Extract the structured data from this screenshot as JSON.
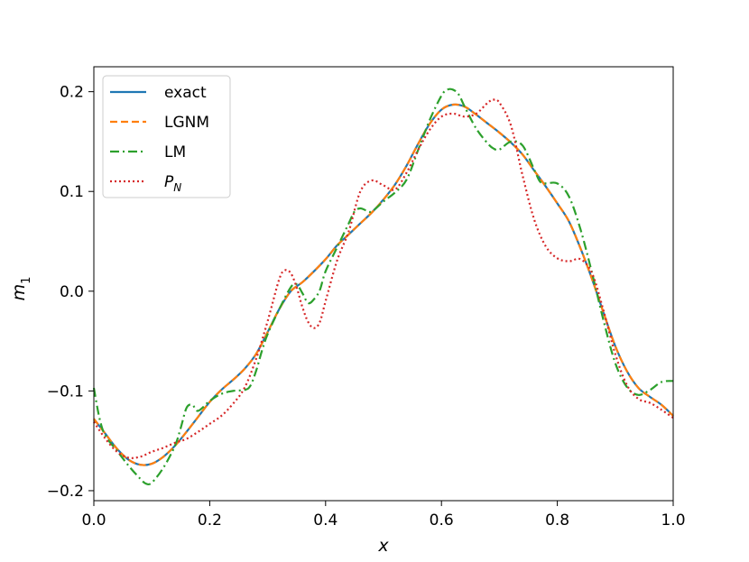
{
  "chart_data": {
    "type": "line",
    "xlabel": "x",
    "ylabel": "m",
    "ylabel_sub": "1",
    "xlim": [
      0.0,
      1.0
    ],
    "ylim": [
      -0.21,
      0.225
    ],
    "xticks": [
      0.0,
      0.2,
      0.4,
      0.6,
      0.8,
      1.0
    ],
    "xtick_labels": [
      "0.0",
      "0.2",
      "0.4",
      "0.6",
      "0.8",
      "1.0"
    ],
    "yticks": [
      -0.2,
      -0.1,
      0.0,
      0.1,
      0.2
    ],
    "ytick_labels": [
      "−0.2",
      "−0.1",
      "0.0",
      "0.1",
      "0.2"
    ],
    "grid": false,
    "legend_position": "upper-left",
    "series": [
      {
        "name": "exact",
        "legend_label": "exact",
        "color": "#1f77b4",
        "dash": "solid",
        "points": [
          [
            0.0,
            -0.128
          ],
          [
            0.02,
            -0.143
          ],
          [
            0.04,
            -0.158
          ],
          [
            0.06,
            -0.169
          ],
          [
            0.08,
            -0.174
          ],
          [
            0.1,
            -0.173
          ],
          [
            0.12,
            -0.166
          ],
          [
            0.14,
            -0.155
          ],
          [
            0.16,
            -0.141
          ],
          [
            0.18,
            -0.126
          ],
          [
            0.2,
            -0.111
          ],
          [
            0.22,
            -0.099
          ],
          [
            0.24,
            -0.089
          ],
          [
            0.26,
            -0.078
          ],
          [
            0.28,
            -0.063
          ],
          [
            0.3,
            -0.041
          ],
          [
            0.32,
            -0.018
          ],
          [
            0.34,
            0.0
          ],
          [
            0.36,
            0.009
          ],
          [
            0.38,
            0.02
          ],
          [
            0.4,
            0.032
          ],
          [
            0.42,
            0.046
          ],
          [
            0.44,
            0.057
          ],
          [
            0.46,
            0.068
          ],
          [
            0.48,
            0.079
          ],
          [
            0.5,
            0.092
          ],
          [
            0.52,
            0.107
          ],
          [
            0.54,
            0.126
          ],
          [
            0.56,
            0.148
          ],
          [
            0.58,
            0.168
          ],
          [
            0.6,
            0.182
          ],
          [
            0.62,
            0.187
          ],
          [
            0.64,
            0.185
          ],
          [
            0.66,
            0.177
          ],
          [
            0.68,
            0.168
          ],
          [
            0.7,
            0.159
          ],
          [
            0.72,
            0.149
          ],
          [
            0.74,
            0.137
          ],
          [
            0.76,
            0.121
          ],
          [
            0.78,
            0.105
          ],
          [
            0.8,
            0.088
          ],
          [
            0.82,
            0.07
          ],
          [
            0.84,
            0.043
          ],
          [
            0.86,
            0.012
          ],
          [
            0.88,
            -0.022
          ],
          [
            0.9,
            -0.055
          ],
          [
            0.92,
            -0.08
          ],
          [
            0.94,
            -0.097
          ],
          [
            0.96,
            -0.106
          ],
          [
            0.98,
            -0.114
          ],
          [
            1.0,
            -0.125
          ]
        ]
      },
      {
        "name": "LGNM",
        "legend_label": "LGNM",
        "color": "#ff7f0e",
        "dash": "dashed",
        "points": [
          [
            0.0,
            -0.128
          ],
          [
            0.02,
            -0.143
          ],
          [
            0.04,
            -0.158
          ],
          [
            0.06,
            -0.169
          ],
          [
            0.08,
            -0.174
          ],
          [
            0.1,
            -0.173
          ],
          [
            0.12,
            -0.166
          ],
          [
            0.14,
            -0.155
          ],
          [
            0.16,
            -0.141
          ],
          [
            0.18,
            -0.126
          ],
          [
            0.2,
            -0.111
          ],
          [
            0.22,
            -0.099
          ],
          [
            0.24,
            -0.089
          ],
          [
            0.26,
            -0.078
          ],
          [
            0.28,
            -0.063
          ],
          [
            0.3,
            -0.041
          ],
          [
            0.32,
            -0.018
          ],
          [
            0.34,
            0.0
          ],
          [
            0.36,
            0.009
          ],
          [
            0.38,
            0.02
          ],
          [
            0.4,
            0.032
          ],
          [
            0.42,
            0.046
          ],
          [
            0.44,
            0.057
          ],
          [
            0.46,
            0.068
          ],
          [
            0.48,
            0.079
          ],
          [
            0.5,
            0.092
          ],
          [
            0.52,
            0.107
          ],
          [
            0.54,
            0.126
          ],
          [
            0.56,
            0.148
          ],
          [
            0.58,
            0.168
          ],
          [
            0.6,
            0.182
          ],
          [
            0.62,
            0.187
          ],
          [
            0.64,
            0.185
          ],
          [
            0.66,
            0.177
          ],
          [
            0.68,
            0.168
          ],
          [
            0.7,
            0.159
          ],
          [
            0.72,
            0.149
          ],
          [
            0.74,
            0.137
          ],
          [
            0.76,
            0.121
          ],
          [
            0.78,
            0.105
          ],
          [
            0.8,
            0.088
          ],
          [
            0.82,
            0.07
          ],
          [
            0.84,
            0.043
          ],
          [
            0.86,
            0.012
          ],
          [
            0.88,
            -0.022
          ],
          [
            0.9,
            -0.055
          ],
          [
            0.92,
            -0.08
          ],
          [
            0.94,
            -0.097
          ],
          [
            0.96,
            -0.106
          ],
          [
            0.98,
            -0.114
          ],
          [
            1.0,
            -0.125
          ]
        ]
      },
      {
        "name": "LM",
        "legend_label": "LM",
        "color": "#2ca02c",
        "dash": "dashdot",
        "points": [
          [
            0.0,
            -0.097
          ],
          [
            0.01,
            -0.128
          ],
          [
            0.02,
            -0.145
          ],
          [
            0.04,
            -0.16
          ],
          [
            0.06,
            -0.175
          ],
          [
            0.08,
            -0.188
          ],
          [
            0.09,
            -0.193
          ],
          [
            0.1,
            -0.192
          ],
          [
            0.12,
            -0.177
          ],
          [
            0.14,
            -0.155
          ],
          [
            0.15,
            -0.137
          ],
          [
            0.16,
            -0.117
          ],
          [
            0.17,
            -0.114
          ],
          [
            0.18,
            -0.12
          ],
          [
            0.2,
            -0.11
          ],
          [
            0.22,
            -0.103
          ],
          [
            0.24,
            -0.1
          ],
          [
            0.26,
            -0.099
          ],
          [
            0.27,
            -0.095
          ],
          [
            0.28,
            -0.08
          ],
          [
            0.29,
            -0.06
          ],
          [
            0.3,
            -0.043
          ],
          [
            0.32,
            -0.018
          ],
          [
            0.34,
            0.004
          ],
          [
            0.35,
            0.007
          ],
          [
            0.36,
            -0.002
          ],
          [
            0.37,
            -0.012
          ],
          [
            0.38,
            -0.008
          ],
          [
            0.39,
            0.001
          ],
          [
            0.4,
            0.02
          ],
          [
            0.42,
            0.044
          ],
          [
            0.44,
            0.068
          ],
          [
            0.45,
            0.08
          ],
          [
            0.46,
            0.083
          ],
          [
            0.47,
            0.081
          ],
          [
            0.48,
            0.08
          ],
          [
            0.5,
            0.09
          ],
          [
            0.52,
            0.099
          ],
          [
            0.54,
            0.112
          ],
          [
            0.56,
            0.142
          ],
          [
            0.58,
            0.172
          ],
          [
            0.6,
            0.196
          ],
          [
            0.61,
            0.202
          ],
          [
            0.62,
            0.202
          ],
          [
            0.63,
            0.197
          ],
          [
            0.64,
            0.185
          ],
          [
            0.66,
            0.163
          ],
          [
            0.68,
            0.148
          ],
          [
            0.69,
            0.143
          ],
          [
            0.7,
            0.142
          ],
          [
            0.72,
            0.15
          ],
          [
            0.74,
            0.146
          ],
          [
            0.76,
            0.122
          ],
          [
            0.77,
            0.11
          ],
          [
            0.78,
            0.108
          ],
          [
            0.8,
            0.108
          ],
          [
            0.82,
            0.095
          ],
          [
            0.84,
            0.062
          ],
          [
            0.86,
            0.018
          ],
          [
            0.88,
            -0.03
          ],
          [
            0.9,
            -0.072
          ],
          [
            0.92,
            -0.096
          ],
          [
            0.94,
            -0.104
          ],
          [
            0.96,
            -0.099
          ],
          [
            0.98,
            -0.091
          ],
          [
            1.0,
            -0.09
          ]
        ]
      },
      {
        "name": "P_N",
        "legend_label": "P",
        "legend_sub": "N",
        "color": "#d62728",
        "dash": "dotted",
        "points": [
          [
            0.0,
            -0.131
          ],
          [
            0.02,
            -0.148
          ],
          [
            0.04,
            -0.161
          ],
          [
            0.06,
            -0.167
          ],
          [
            0.08,
            -0.166
          ],
          [
            0.1,
            -0.161
          ],
          [
            0.12,
            -0.157
          ],
          [
            0.14,
            -0.152
          ],
          [
            0.16,
            -0.148
          ],
          [
            0.18,
            -0.141
          ],
          [
            0.2,
            -0.133
          ],
          [
            0.22,
            -0.125
          ],
          [
            0.24,
            -0.113
          ],
          [
            0.26,
            -0.097
          ],
          [
            0.28,
            -0.068
          ],
          [
            0.3,
            -0.03
          ],
          [
            0.32,
            0.012
          ],
          [
            0.33,
            0.021
          ],
          [
            0.34,
            0.018
          ],
          [
            0.35,
            0.004
          ],
          [
            0.36,
            -0.016
          ],
          [
            0.37,
            -0.031
          ],
          [
            0.38,
            -0.037
          ],
          [
            0.39,
            -0.031
          ],
          [
            0.4,
            -0.01
          ],
          [
            0.42,
            0.031
          ],
          [
            0.44,
            0.06
          ],
          [
            0.46,
            0.1
          ],
          [
            0.48,
            0.111
          ],
          [
            0.5,
            0.106
          ],
          [
            0.52,
            0.102
          ],
          [
            0.54,
            0.119
          ],
          [
            0.56,
            0.142
          ],
          [
            0.58,
            0.162
          ],
          [
            0.6,
            0.175
          ],
          [
            0.62,
            0.178
          ],
          [
            0.64,
            0.175
          ],
          [
            0.66,
            0.178
          ],
          [
            0.68,
            0.189
          ],
          [
            0.69,
            0.192
          ],
          [
            0.7,
            0.189
          ],
          [
            0.72,
            0.166
          ],
          [
            0.74,
            0.116
          ],
          [
            0.76,
            0.072
          ],
          [
            0.78,
            0.045
          ],
          [
            0.8,
            0.033
          ],
          [
            0.82,
            0.03
          ],
          [
            0.84,
            0.032
          ],
          [
            0.86,
            0.018
          ],
          [
            0.88,
            -0.02
          ],
          [
            0.9,
            -0.063
          ],
          [
            0.92,
            -0.094
          ],
          [
            0.94,
            -0.108
          ],
          [
            0.96,
            -0.112
          ],
          [
            0.98,
            -0.119
          ],
          [
            1.0,
            -0.127
          ]
        ]
      }
    ]
  }
}
